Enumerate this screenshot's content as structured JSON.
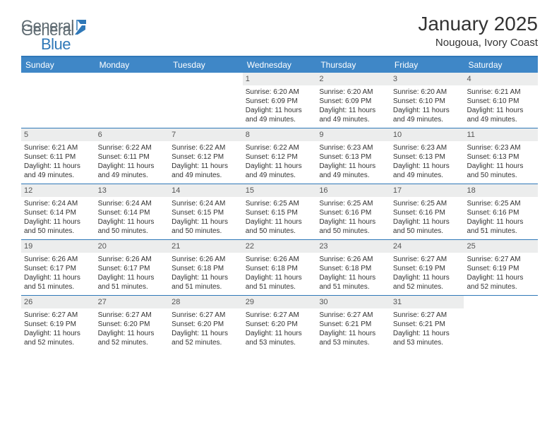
{
  "brand": {
    "part1": "General",
    "part2": "Blue",
    "icon_color": "#2f78b8",
    "text1_color": "#5f6b72",
    "text2_color": "#2f78b8"
  },
  "title": "January 2025",
  "location": "Nougoua, Ivory Coast",
  "colors": {
    "header_bg": "#3f87c7",
    "border": "#2f78b8",
    "daynum_bg": "#eceded",
    "text": "#333333",
    "bg": "#ffffff"
  },
  "days_of_week": [
    "Sunday",
    "Monday",
    "Tuesday",
    "Wednesday",
    "Thursday",
    "Friday",
    "Saturday"
  ],
  "weeks": [
    [
      null,
      null,
      null,
      {
        "n": "1",
        "sr": "6:20 AM",
        "ss": "6:09 PM",
        "dl": "11 hours and 49 minutes."
      },
      {
        "n": "2",
        "sr": "6:20 AM",
        "ss": "6:09 PM",
        "dl": "11 hours and 49 minutes."
      },
      {
        "n": "3",
        "sr": "6:20 AM",
        "ss": "6:10 PM",
        "dl": "11 hours and 49 minutes."
      },
      {
        "n": "4",
        "sr": "6:21 AM",
        "ss": "6:10 PM",
        "dl": "11 hours and 49 minutes."
      }
    ],
    [
      {
        "n": "5",
        "sr": "6:21 AM",
        "ss": "6:11 PM",
        "dl": "11 hours and 49 minutes."
      },
      {
        "n": "6",
        "sr": "6:22 AM",
        "ss": "6:11 PM",
        "dl": "11 hours and 49 minutes."
      },
      {
        "n": "7",
        "sr": "6:22 AM",
        "ss": "6:12 PM",
        "dl": "11 hours and 49 minutes."
      },
      {
        "n": "8",
        "sr": "6:22 AM",
        "ss": "6:12 PM",
        "dl": "11 hours and 49 minutes."
      },
      {
        "n": "9",
        "sr": "6:23 AM",
        "ss": "6:13 PM",
        "dl": "11 hours and 49 minutes."
      },
      {
        "n": "10",
        "sr": "6:23 AM",
        "ss": "6:13 PM",
        "dl": "11 hours and 49 minutes."
      },
      {
        "n": "11",
        "sr": "6:23 AM",
        "ss": "6:13 PM",
        "dl": "11 hours and 50 minutes."
      }
    ],
    [
      {
        "n": "12",
        "sr": "6:24 AM",
        "ss": "6:14 PM",
        "dl": "11 hours and 50 minutes."
      },
      {
        "n": "13",
        "sr": "6:24 AM",
        "ss": "6:14 PM",
        "dl": "11 hours and 50 minutes."
      },
      {
        "n": "14",
        "sr": "6:24 AM",
        "ss": "6:15 PM",
        "dl": "11 hours and 50 minutes."
      },
      {
        "n": "15",
        "sr": "6:25 AM",
        "ss": "6:15 PM",
        "dl": "11 hours and 50 minutes."
      },
      {
        "n": "16",
        "sr": "6:25 AM",
        "ss": "6:16 PM",
        "dl": "11 hours and 50 minutes."
      },
      {
        "n": "17",
        "sr": "6:25 AM",
        "ss": "6:16 PM",
        "dl": "11 hours and 50 minutes."
      },
      {
        "n": "18",
        "sr": "6:25 AM",
        "ss": "6:16 PM",
        "dl": "11 hours and 51 minutes."
      }
    ],
    [
      {
        "n": "19",
        "sr": "6:26 AM",
        "ss": "6:17 PM",
        "dl": "11 hours and 51 minutes."
      },
      {
        "n": "20",
        "sr": "6:26 AM",
        "ss": "6:17 PM",
        "dl": "11 hours and 51 minutes."
      },
      {
        "n": "21",
        "sr": "6:26 AM",
        "ss": "6:18 PM",
        "dl": "11 hours and 51 minutes."
      },
      {
        "n": "22",
        "sr": "6:26 AM",
        "ss": "6:18 PM",
        "dl": "11 hours and 51 minutes."
      },
      {
        "n": "23",
        "sr": "6:26 AM",
        "ss": "6:18 PM",
        "dl": "11 hours and 51 minutes."
      },
      {
        "n": "24",
        "sr": "6:27 AM",
        "ss": "6:19 PM",
        "dl": "11 hours and 52 minutes."
      },
      {
        "n": "25",
        "sr": "6:27 AM",
        "ss": "6:19 PM",
        "dl": "11 hours and 52 minutes."
      }
    ],
    [
      {
        "n": "26",
        "sr": "6:27 AM",
        "ss": "6:19 PM",
        "dl": "11 hours and 52 minutes."
      },
      {
        "n": "27",
        "sr": "6:27 AM",
        "ss": "6:20 PM",
        "dl": "11 hours and 52 minutes."
      },
      {
        "n": "28",
        "sr": "6:27 AM",
        "ss": "6:20 PM",
        "dl": "11 hours and 52 minutes."
      },
      {
        "n": "29",
        "sr": "6:27 AM",
        "ss": "6:20 PM",
        "dl": "11 hours and 53 minutes."
      },
      {
        "n": "30",
        "sr": "6:27 AM",
        "ss": "6:21 PM",
        "dl": "11 hours and 53 minutes."
      },
      {
        "n": "31",
        "sr": "6:27 AM",
        "ss": "6:21 PM",
        "dl": "11 hours and 53 minutes."
      },
      null
    ]
  ],
  "labels": {
    "sunrise": "Sunrise: ",
    "sunset": "Sunset: ",
    "daylight": "Daylight: "
  }
}
